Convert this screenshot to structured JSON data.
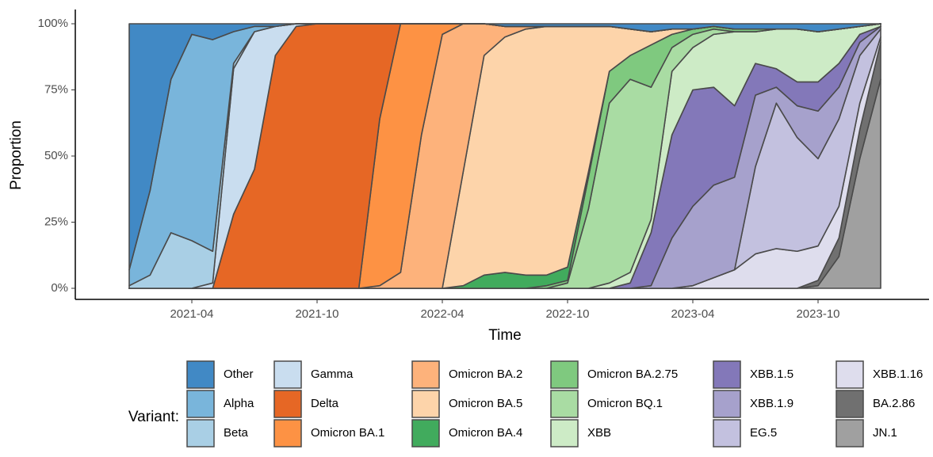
{
  "chart_data": {
    "type": "stacked_area",
    "x_label": "Time",
    "y_label": "Proportion",
    "legend_title": "Variant:",
    "x": [
      "2021-01",
      "2021-02",
      "2021-03",
      "2021-04",
      "2021-05",
      "2021-06",
      "2021-07",
      "2021-08",
      "2021-09",
      "2021-10",
      "2021-11",
      "2021-12",
      "2022-01",
      "2022-02",
      "2022-03",
      "2022-04",
      "2022-05",
      "2022-06",
      "2022-07",
      "2022-08",
      "2022-09",
      "2022-10",
      "2022-11",
      "2022-12",
      "2023-01",
      "2023-02",
      "2023-03",
      "2023-04",
      "2023-05",
      "2023-06",
      "2023-07",
      "2023-08",
      "2023-09",
      "2023-10",
      "2023-11",
      "2023-12",
      "2024-01"
    ],
    "xlim": [
      "2021-01",
      "2024-01"
    ],
    "xticks": [
      "2021-04",
      "2021-10",
      "2022-04",
      "2022-10",
      "2023-04",
      "2023-10"
    ],
    "ylim": [
      0,
      100
    ],
    "yticks": [
      {
        "value": 0,
        "label": "0%"
      },
      {
        "value": 25,
        "label": "25%"
      },
      {
        "value": 50,
        "label": "50%"
      },
      {
        "value": 75,
        "label": "75%"
      },
      {
        "value": 100,
        "label": "100%"
      }
    ],
    "series": [
      {
        "name": "Other",
        "color": "#4189c5",
        "values": [
          93,
          63,
          21,
          4,
          6,
          3,
          1,
          1,
          0,
          0,
          0,
          0,
          0,
          0,
          0,
          0,
          0,
          0,
          1,
          1,
          1,
          1,
          1,
          1,
          2,
          3,
          2,
          2,
          1,
          2,
          2,
          2,
          2,
          3,
          2,
          1,
          0
        ]
      },
      {
        "name": "Alpha",
        "color": "#79b5db",
        "values": [
          6,
          32,
          58,
          78,
          80,
          12,
          2,
          0,
          0,
          0,
          0,
          0,
          0,
          0,
          0,
          0,
          0,
          0,
          0,
          0,
          0,
          0,
          0,
          0,
          0,
          0,
          0,
          0,
          0,
          0,
          0,
          0,
          0,
          0,
          0,
          0,
          0
        ]
      },
      {
        "name": "Beta",
        "color": "#a9cfe5",
        "values": [
          1,
          5,
          21,
          18,
          12,
          2,
          0,
          0,
          0,
          0,
          0,
          0,
          0,
          0,
          0,
          0,
          0,
          0,
          0,
          0,
          0,
          0,
          0,
          0,
          0,
          0,
          0,
          0,
          0,
          0,
          0,
          0,
          0,
          0,
          0,
          0,
          0
        ]
      },
      {
        "name": "Gamma",
        "color": "#c9ddef",
        "values": [
          0,
          0,
          0,
          0,
          2,
          55,
          52,
          11,
          1,
          0,
          0,
          0,
          0,
          0,
          0,
          0,
          0,
          0,
          0,
          0,
          0,
          0,
          0,
          0,
          0,
          0,
          0,
          0,
          0,
          0,
          0,
          0,
          0,
          0,
          0,
          0,
          0
        ]
      },
      {
        "name": "Delta",
        "color": "#e66725",
        "values": [
          0,
          0,
          0,
          0,
          0,
          28,
          45,
          88,
          99,
          100,
          100,
          100,
          36,
          0,
          0,
          0,
          0,
          0,
          0,
          0,
          0,
          0,
          0,
          0,
          0,
          0,
          0,
          0,
          0,
          0,
          0,
          0,
          0,
          0,
          0,
          0,
          0
        ]
      },
      {
        "name": "Omicron BA.1",
        "color": "#fd9244",
        "values": [
          0,
          0,
          0,
          0,
          0,
          0,
          0,
          0,
          0,
          0,
          0,
          0,
          63,
          94,
          42,
          4,
          0,
          0,
          0,
          0,
          0,
          0,
          0,
          0,
          0,
          0,
          0,
          0,
          0,
          0,
          0,
          0,
          0,
          0,
          0,
          0,
          0
        ]
      },
      {
        "name": "Omicron BA.2",
        "color": "#fdb27b",
        "values": [
          0,
          0,
          0,
          0,
          0,
          0,
          0,
          0,
          0,
          0,
          0,
          0,
          1,
          6,
          58,
          96,
          56,
          12,
          4,
          1,
          0,
          0,
          0,
          0,
          0,
          0,
          0,
          0,
          0,
          0,
          0,
          0,
          0,
          0,
          0,
          0,
          0
        ]
      },
      {
        "name": "Omicron BA.5",
        "color": "#fdd4aa",
        "values": [
          0,
          0,
          0,
          0,
          0,
          0,
          0,
          0,
          0,
          0,
          0,
          0,
          0,
          0,
          0,
          0,
          43,
          83,
          89,
          93,
          94,
          91,
          55,
          17,
          10,
          5,
          2,
          0,
          0,
          0,
          0,
          0,
          0,
          0,
          0,
          0,
          0
        ]
      },
      {
        "name": "Omicron BA.4",
        "color": "#41ab5d",
        "values": [
          0,
          0,
          0,
          0,
          0,
          0,
          0,
          0,
          0,
          0,
          0,
          0,
          0,
          0,
          0,
          0,
          1,
          5,
          6,
          5,
          4,
          5,
          2,
          0,
          0,
          0,
          0,
          0,
          0,
          0,
          0,
          0,
          0,
          0,
          0,
          0,
          0
        ]
      },
      {
        "name": "Omicron BA.2.75",
        "color": "#7fc97f",
        "values": [
          0,
          0,
          0,
          0,
          0,
          0,
          0,
          0,
          0,
          0,
          0,
          0,
          0,
          0,
          0,
          0,
          0,
          0,
          0,
          0,
          1,
          1,
          12,
          12,
          9,
          16,
          5,
          2,
          1,
          1,
          1,
          0,
          0,
          0,
          0,
          0,
          0
        ]
      },
      {
        "name": "Omicron BQ.1",
        "color": "#a9dca3",
        "values": [
          0,
          0,
          0,
          0,
          0,
          0,
          0,
          0,
          0,
          0,
          0,
          0,
          0,
          0,
          0,
          0,
          0,
          0,
          0,
          0,
          0,
          2,
          30,
          68,
          73,
          50,
          9,
          5,
          2,
          0,
          0,
          0,
          0,
          0,
          0,
          0,
          0
        ]
      },
      {
        "name": "XBB",
        "color": "#cdebc6",
        "values": [
          0,
          0,
          0,
          0,
          0,
          0,
          0,
          0,
          0,
          0,
          0,
          0,
          0,
          0,
          0,
          0,
          0,
          0,
          0,
          0,
          0,
          0,
          0,
          2,
          4,
          5,
          24,
          16,
          20,
          28,
          12,
          15,
          20,
          19,
          13,
          3,
          1
        ]
      },
      {
        "name": "XBB.1.5",
        "color": "#8378b9",
        "values": [
          0,
          0,
          0,
          0,
          0,
          0,
          0,
          0,
          0,
          0,
          0,
          0,
          0,
          0,
          0,
          0,
          0,
          0,
          0,
          0,
          0,
          0,
          0,
          0,
          2,
          20,
          39,
          44,
          37,
          27,
          12,
          7,
          9,
          11,
          9,
          3,
          0
        ]
      },
      {
        "name": "XBB.1.9",
        "color": "#a6a1cc",
        "values": [
          0,
          0,
          0,
          0,
          0,
          0,
          0,
          0,
          0,
          0,
          0,
          0,
          0,
          0,
          0,
          0,
          0,
          0,
          0,
          0,
          0,
          0,
          0,
          0,
          0,
          1,
          19,
          30,
          35,
          35,
          27,
          6,
          12,
          18,
          12,
          5,
          1
        ]
      },
      {
        "name": "EG.5",
        "color": "#c3c1df",
        "values": [
          0,
          0,
          0,
          0,
          0,
          0,
          0,
          0,
          0,
          0,
          0,
          0,
          0,
          0,
          0,
          0,
          0,
          0,
          0,
          0,
          0,
          0,
          0,
          0,
          0,
          0,
          0,
          0,
          0,
          0,
          33,
          55,
          43,
          33,
          33,
          18,
          3
        ]
      },
      {
        "name": "XBB.1.16",
        "color": "#dedded",
        "values": [
          0,
          0,
          0,
          0,
          0,
          0,
          0,
          0,
          0,
          0,
          0,
          0,
          0,
          0,
          0,
          0,
          0,
          0,
          0,
          0,
          0,
          0,
          0,
          0,
          0,
          0,
          0,
          1,
          4,
          7,
          13,
          15,
          14,
          13,
          12,
          10,
          2
        ]
      },
      {
        "name": "BA.2.86",
        "color": "#707070",
        "values": [
          0,
          0,
          0,
          0,
          0,
          0,
          0,
          0,
          0,
          0,
          0,
          0,
          0,
          0,
          0,
          0,
          0,
          0,
          0,
          0,
          0,
          0,
          0,
          0,
          0,
          0,
          0,
          0,
          0,
          0,
          0,
          0,
          0,
          2,
          7,
          11,
          14
        ]
      },
      {
        "name": "JN.1",
        "color": "#a0a0a0",
        "values": [
          0,
          0,
          0,
          0,
          0,
          0,
          0,
          0,
          0,
          0,
          0,
          0,
          0,
          0,
          0,
          0,
          0,
          0,
          0,
          0,
          0,
          0,
          0,
          0,
          0,
          0,
          0,
          0,
          0,
          0,
          0,
          0,
          0,
          1,
          12,
          49,
          79
        ]
      }
    ]
  }
}
